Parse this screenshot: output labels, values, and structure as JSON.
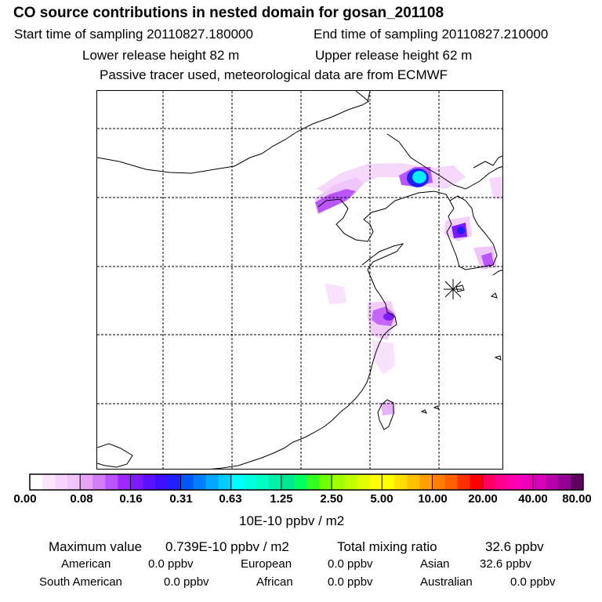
{
  "title": "CO  source contributions in nested domain for gosan_201108",
  "header": {
    "start_label": "Start time of sampling 20110827.180000",
    "end_label": "End time of sampling 20110827.210000",
    "lower_label": "Lower release height   82 m",
    "upper_label": "Upper release height   62 m",
    "note": "Passive tracer used, meteorological data are from ECMWF"
  },
  "map": {
    "receptor": "gosan",
    "plume_colors": [
      "#f5d8fb",
      "#e8a8f8",
      "#bb55ff",
      "#7d1aff",
      "#1e1eff",
      "#00f0ff"
    ]
  },
  "colorbar": {
    "unit": "10E-10 ppbv / m2",
    "ticks": [
      "0.00",
      "0.08",
      "0.16",
      "0.31",
      "0.63",
      "1.25",
      "2.50",
      "5.00",
      "10.00",
      "20.00",
      "40.00",
      "80.00"
    ],
    "colors": [
      [
        "#ffffff",
        "#fbe6fc",
        "#f7d4fb",
        "#f2c2fa"
      ],
      [
        "#e7a3f8",
        "#d37df6",
        "#bb55ff",
        "#a029fe"
      ],
      [
        "#7d1aff",
        "#5a12ff",
        "#3c10ff",
        "#2020ff"
      ],
      [
        "#0058ff",
        "#0080ff",
        "#00a8ff",
        "#00ccff"
      ],
      [
        "#00ffff",
        "#00ffe0",
        "#00ffc0",
        "#00f0a8"
      ],
      [
        "#00e890",
        "#00ff60",
        "#30ff20",
        "#70ff00"
      ],
      [
        "#a0ff00",
        "#c0ff00",
        "#e0ff00",
        "#ffff00"
      ],
      [
        "#ffff00",
        "#ffe000",
        "#ffc000",
        "#ffa000"
      ],
      [
        "#ff8000",
        "#ff6000",
        "#ff3000",
        "#ff0000"
      ],
      [
        "#ff0060",
        "#ff0090",
        "#ff00b0",
        "#ee00b8"
      ],
      [
        "#d800b8",
        "#b800a8",
        "#960090",
        "#600060"
      ]
    ]
  },
  "stats": {
    "max_label": "Maximum value",
    "max_value": "0.739E-10 ppbv / m2",
    "total_label": "Total mixing ratio",
    "total_value": "32.6 ppbv",
    "american_label": "American",
    "american_value": "0.0 ppbv",
    "european_label": "European",
    "european_value": "0.0 ppbv",
    "asian_label": "Asian",
    "asian_value": "32.6 ppbv",
    "south_american_label": "South American",
    "south_american_value": "0.0 ppbv",
    "african_label": "African",
    "african_value": "0.0 ppbv",
    "australian_label": "Australian",
    "australian_value": "0.0 ppbv"
  }
}
